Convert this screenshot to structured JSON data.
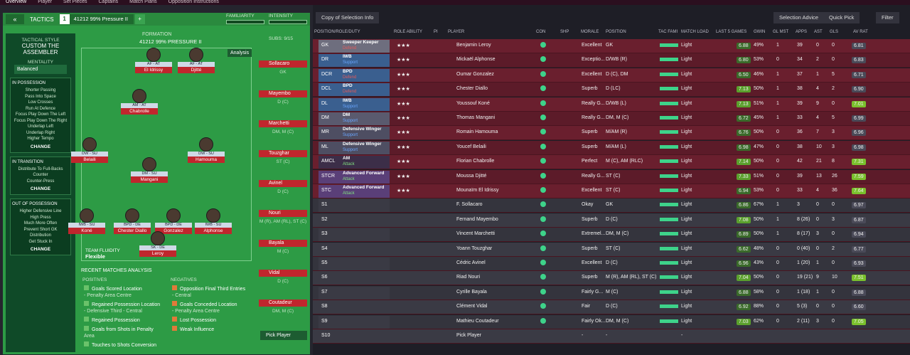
{
  "topnav": [
    "Overview",
    "Player",
    "Set Pieces",
    "Captains",
    "Match Plans",
    "Opposition Instructions"
  ],
  "tactics": {
    "tab_label": "TACTICS",
    "slot": "1",
    "name": "41212 99% Pressure II",
    "plus": "+",
    "familiarity": "FAMILIARITY",
    "intensity": "INTENSITY",
    "style_header": "TACTICAL STYLE",
    "style_name": "CUSTOM THE ASSEMBLER",
    "mentality_label": "MENTALITY",
    "mentality": "Balanced",
    "in_possession": {
      "title": "IN POSSESSION",
      "items": [
        "Shorter Passing",
        "Pass Into Space",
        "Low Crosses",
        "Run At Defence",
        "Focus Play Down The Left",
        "Focus Play Down The Right",
        "Underlap Left",
        "Underlap Right",
        "Higher Tempo"
      ],
      "change": "CHANGE"
    },
    "in_transition": {
      "title": "IN TRANSITION",
      "items": [
        "Distribute To Full-Backs",
        "Counter",
        "Counter-Press"
      ],
      "change": "CHANGE"
    },
    "out_possession": {
      "title": "OUT OF POSSESSION",
      "items": [
        "Higher Defensive Line",
        "High Press",
        "Much More Often",
        "Prevent Short GK",
        "Distribution",
        "Get Stuck In"
      ],
      "change": "CHANGE"
    },
    "formation_h": "FORMATION",
    "formation_name": "41212 99% PRESSURE II",
    "subs_h": "SUBS:",
    "subs_count": "9/15",
    "analysis": "Analysis",
    "fluidity_h": "TEAM FLUIDITY",
    "fluidity": "Flexible",
    "recent_h": "RECENT MATCHES ANALYSIS",
    "positives_h": "POSITIVES",
    "negatives_h": "NEGATIVES",
    "positives": [
      {
        "t": "Goals Scored Location",
        "d": "- Penalty Area Centre"
      },
      {
        "t": "Regained Possession Location",
        "d": "- Defensive Third - Central"
      },
      {
        "t": "Regained Possession",
        "d": ""
      },
      {
        "t": "Goals from Shots in Penalty",
        "d": "Area"
      },
      {
        "t": "Touches to Shots Conversion",
        "d": ""
      }
    ],
    "negatives": [
      {
        "t": "Opposition Final Third Entries",
        "d": "- Central"
      },
      {
        "t": "Goals Conceded Location",
        "d": "- Penalty Area Centre"
      },
      {
        "t": "Lost Possession",
        "d": ""
      },
      {
        "t": "Weak Influence",
        "d": ""
      }
    ],
    "pick_player": "Pick Player"
  },
  "pitch_players": [
    {
      "role": "AF - AT",
      "name": "El Idrissy"
    },
    {
      "role": "AF - AT",
      "name": "Djitté"
    },
    {
      "role": "AM - AT",
      "name": "Chabrolle"
    },
    {
      "role": "DW - SU",
      "name": "Belaili"
    },
    {
      "role": "DW - SU",
      "name": "Hamouma"
    },
    {
      "role": "DM - SU",
      "name": "Mangani"
    },
    {
      "role": "IWB - SU",
      "name": "Koné"
    },
    {
      "role": "BPD - DE",
      "name": "Chester Diallo"
    },
    {
      "role": "BPD - DE",
      "name": "Gonzalez"
    },
    {
      "role": "IWB - SU",
      "name": "Alphonse"
    },
    {
      "role": "SK - DE",
      "name": "Leroy"
    }
  ],
  "subs": [
    {
      "name": "Sollacaro",
      "pos": "GK"
    },
    {
      "name": "Mayembo",
      "pos": "D (C)"
    },
    {
      "name": "Marchetti",
      "pos": "DM, M (C)"
    },
    {
      "name": "Touzghar",
      "pos": "ST (C)"
    },
    {
      "name": "Avinel",
      "pos": "D (C)"
    },
    {
      "name": "Nouri",
      "pos": "M (R), AM (RL), ST (C)"
    },
    {
      "name": "Bayala",
      "pos": "M (C)"
    },
    {
      "name": "Vidal",
      "pos": "D (C)"
    },
    {
      "name": "Coutadeur",
      "pos": "DM, M (C)"
    }
  ],
  "right": {
    "copy_label": "Copy of Selection Info",
    "advice": "Selection Advice",
    "quick_pick": "Quick Pick",
    "filter": "Filter",
    "headers": [
      "POSITION/ROLE/DUTY",
      "ROLE ABILITY",
      "PI",
      "PLAYER",
      "CON",
      "SHP",
      "MORALE",
      "POSITION",
      "TAC FAMI",
      "MATCH LOAD",
      "LAST 5 GAMES",
      "GWIN",
      "GL MST",
      "APPS",
      "AST",
      "GLS",
      "AV RAT"
    ],
    "rows": [
      {
        "code": "GK",
        "role": "Sweeper Keeper",
        "duty": "Defend",
        "player": "Benjamin Leroy",
        "morale": "Excellent",
        "pos": "GK",
        "load": "Light",
        "form": "6.88",
        "gwin": "49%",
        "glmst": "1",
        "apps": "39",
        "ast": "0",
        "gls": "0",
        "rat": "6.81"
      },
      {
        "code": "DR",
        "role": "IWB",
        "duty": "Support",
        "player": "Mickaël Alphonse",
        "morale": "Exceptio...",
        "pos": "D/WB (R)",
        "load": "Light",
        "form": "6.80",
        "gwin": "53%",
        "glmst": "0",
        "apps": "34",
        "ast": "2",
        "gls": "0",
        "rat": "6.83"
      },
      {
        "code": "DCR",
        "role": "BPD",
        "duty": "Defend",
        "player": "Oumar Gonzalez",
        "morale": "Excellent",
        "pos": "D (C), DM",
        "load": "Light",
        "form": "6.50",
        "gwin": "46%",
        "glmst": "1",
        "apps": "37",
        "ast": "1",
        "gls": "5",
        "rat": "6.71"
      },
      {
        "code": "DCL",
        "role": "BPD",
        "duty": "Defend",
        "player": "Chester Diallo",
        "morale": "Superb",
        "pos": "D (LC)",
        "load": "Light",
        "form": "7.13",
        "gwin": "50%",
        "glmst": "1",
        "apps": "38",
        "ast": "4",
        "gls": "2",
        "rat": "6.90"
      },
      {
        "code": "DL",
        "role": "IWB",
        "duty": "Support",
        "player": "Youssouf Koné",
        "morale": "Really G...",
        "pos": "D/WB (L)",
        "load": "Light",
        "form": "7.13",
        "gwin": "51%",
        "glmst": "1",
        "apps": "39",
        "ast": "9",
        "gls": "0",
        "rat": "7.01"
      },
      {
        "code": "DM",
        "role": "DM",
        "duty": "Support",
        "player": "Thomas Mangani",
        "morale": "Really G...",
        "pos": "DM, M (C)",
        "load": "Light",
        "form": "6.72",
        "gwin": "45%",
        "glmst": "1",
        "apps": "33",
        "ast": "4",
        "gls": "5",
        "rat": "6.99"
      },
      {
        "code": "MR",
        "role": "Defensive Winger",
        "duty": "Support",
        "player": "Romain Hamouma",
        "morale": "Superb",
        "pos": "M/AM (R)",
        "load": "Light",
        "form": "6.76",
        "gwin": "50%",
        "glmst": "0",
        "apps": "36",
        "ast": "7",
        "gls": "3",
        "rat": "6.96"
      },
      {
        "code": "ML",
        "role": "Defensive Winger",
        "duty": "Support",
        "player": "Youcef Belaili",
        "morale": "Superb",
        "pos": "M/AM (L)",
        "load": "Light",
        "form": "6.98",
        "gwin": "47%",
        "glmst": "0",
        "apps": "38",
        "ast": "10",
        "gls": "3",
        "rat": "6.98"
      },
      {
        "code": "AMCL",
        "role": "AM",
        "duty": "Attack",
        "player": "Florian Chabrolle",
        "morale": "Perfect",
        "pos": "M (C), AM (RLC)",
        "load": "Light",
        "form": "7.14",
        "gwin": "50%",
        "glmst": "0",
        "apps": "42",
        "ast": "21",
        "gls": "8",
        "rat": "7.31"
      },
      {
        "code": "STCR",
        "role": "Advanced Forward",
        "duty": "Attack",
        "player": "Moussa Djitté",
        "morale": "Really G...",
        "pos": "ST (C)",
        "load": "Light",
        "form": "7.33",
        "gwin": "51%",
        "glmst": "0",
        "apps": "39",
        "ast": "13",
        "gls": "26",
        "rat": "7.59"
      },
      {
        "code": "STC",
        "role": "Advanced Forward",
        "duty": "Attack",
        "player": "Mounaïm El Idrissy",
        "morale": "Excellent",
        "pos": "ST (C)",
        "load": "Light",
        "form": "6.94",
        "gwin": "53%",
        "glmst": "0",
        "apps": "33",
        "ast": "4",
        "gls": "36",
        "rat": "7.64"
      },
      {
        "code": "S1",
        "role": "",
        "duty": "",
        "player": "F. Sollacaro",
        "morale": "Okay",
        "pos": "GK",
        "load": "Light",
        "form": "6.86",
        "gwin": "67%",
        "glmst": "1",
        "apps": "3",
        "ast": "0",
        "gls": "0",
        "rat": "6.97"
      },
      {
        "code": "S2",
        "role": "",
        "duty": "",
        "player": "Fernand Mayembo",
        "morale": "Superb",
        "pos": "D (C)",
        "load": "Light",
        "form": "7.08",
        "gwin": "50%",
        "glmst": "1",
        "apps": "8 (26)",
        "ast": "0",
        "gls": "3",
        "rat": "6.87"
      },
      {
        "code": "S3",
        "role": "",
        "duty": "",
        "player": "Vincent Marchetti",
        "morale": "Extremel...",
        "pos": "DM, M (C)",
        "load": "Light",
        "form": "6.89",
        "gwin": "50%",
        "glmst": "1",
        "apps": "8 (17)",
        "ast": "3",
        "gls": "0",
        "rat": "6.94"
      },
      {
        "code": "S4",
        "role": "",
        "duty": "",
        "player": "Yoann Touzghar",
        "morale": "Superb",
        "pos": "ST (C)",
        "load": "Light",
        "form": "6.62",
        "gwin": "48%",
        "glmst": "0",
        "apps": "0 (40)",
        "ast": "0",
        "gls": "2",
        "rat": "6.77"
      },
      {
        "code": "S5",
        "role": "",
        "duty": "",
        "player": "Cédric Avinel",
        "morale": "Excellent",
        "pos": "D (C)",
        "load": "Light",
        "form": "6.96",
        "gwin": "43%",
        "glmst": "0",
        "apps": "1 (20)",
        "ast": "1",
        "gls": "0",
        "rat": "6.93"
      },
      {
        "code": "S6",
        "role": "",
        "duty": "",
        "player": "Riad Nouri",
        "morale": "Superb",
        "pos": "M (R), AM (RL), ST (C)",
        "load": "Light",
        "form": "7.04",
        "gwin": "50%",
        "glmst": "0",
        "apps": "19 (21)",
        "ast": "9",
        "gls": "10",
        "rat": "7.51"
      },
      {
        "code": "S7",
        "role": "",
        "duty": "",
        "player": "Cyrille Bayala",
        "morale": "Fairly G...",
        "pos": "M (C)",
        "load": "Light",
        "form": "6.88",
        "gwin": "58%",
        "glmst": "0",
        "apps": "1 (18)",
        "ast": "1",
        "gls": "0",
        "rat": "6.88"
      },
      {
        "code": "S8",
        "role": "",
        "duty": "",
        "player": "Clément Vidal",
        "morale": "Fair",
        "pos": "D (C)",
        "load": "Light",
        "form": "6.92",
        "gwin": "88%",
        "glmst": "0",
        "apps": "5 (3)",
        "ast": "0",
        "gls": "0",
        "rat": "6.60"
      },
      {
        "code": "S9",
        "role": "",
        "duty": "",
        "player": "Mathieu Coutadeur",
        "morale": "Fairly Ok...",
        "pos": "DM, M (C)",
        "load": "Light",
        "form": "7.03",
        "gwin": "62%",
        "glmst": "0",
        "apps": "2 (11)",
        "ast": "3",
        "gls": "0",
        "rat": "7.05"
      },
      {
        "code": "S10",
        "role": "",
        "duty": "",
        "player": "Pick Player",
        "morale": "-",
        "pos": "-",
        "load": "-",
        "form": "",
        "gwin": "",
        "glmst": "",
        "apps": "",
        "ast": "",
        "gls": "",
        "rat": ""
      }
    ]
  }
}
